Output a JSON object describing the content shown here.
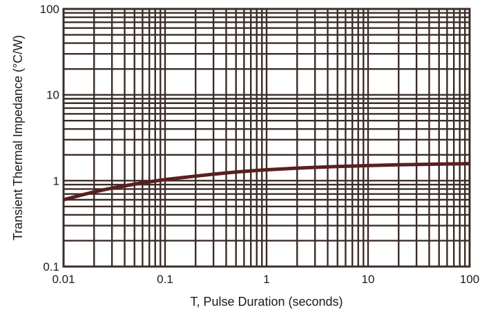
{
  "chart_data": {
    "type": "line",
    "title": "",
    "xlabel": "T, Pulse Duration (seconds)",
    "ylabel": "Transient Thermal Impedance (°C/W)",
    "x_scale": "log",
    "y_scale": "log",
    "xlim": [
      0.01,
      100
    ],
    "ylim": [
      0.1,
      100
    ],
    "grid": true,
    "x_tick_labels": [
      "0.01",
      "0.1",
      "1",
      "10",
      "100"
    ],
    "y_tick_labels": [
      "0.1",
      "1",
      "10",
      "100"
    ],
    "series": [
      {
        "x": [
          0.01,
          0.015,
          0.02,
          0.03,
          0.05,
          0.07,
          0.1,
          0.2,
          0.3,
          0.5,
          0.7,
          1,
          2,
          3,
          5,
          10,
          20,
          50,
          100
        ],
        "y": [
          0.6,
          0.68,
          0.74,
          0.82,
          0.91,
          0.97,
          1.03,
          1.13,
          1.19,
          1.26,
          1.3,
          1.34,
          1.4,
          1.43,
          1.46,
          1.5,
          1.53,
          1.56,
          1.58
        ]
      }
    ],
    "colors": {
      "line": "#5a1f1f",
      "grid": "#3a2c28",
      "background": "#ffffff"
    }
  }
}
